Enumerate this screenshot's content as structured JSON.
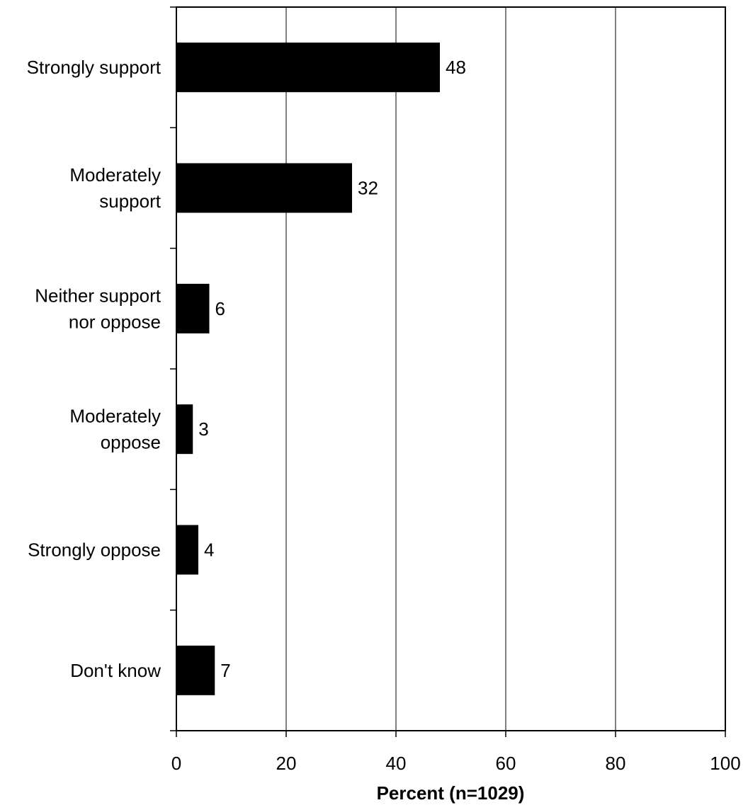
{
  "chart_data": {
    "type": "bar",
    "orientation": "horizontal",
    "categories": [
      [
        "Strongly support"
      ],
      [
        "Moderately",
        "support"
      ],
      [
        "Neither support",
        "nor oppose"
      ],
      [
        "Moderately",
        "oppose"
      ],
      [
        "Strongly oppose"
      ],
      [
        "Don't know"
      ]
    ],
    "values": [
      48,
      32,
      6,
      3,
      4,
      7
    ],
    "data_labels": [
      "48",
      "32",
      "6",
      "3",
      "4",
      "7"
    ],
    "xlabel": "Percent (n=1029)",
    "ylabel": "",
    "xlim": [
      0,
      100
    ],
    "x_ticks": [
      0,
      20,
      40,
      60,
      80,
      100
    ],
    "x_tick_labels": [
      "0",
      "20",
      "40",
      "60",
      "80",
      "100"
    ],
    "grid": "vertical",
    "legend": "none",
    "bar_color": "#000000"
  }
}
